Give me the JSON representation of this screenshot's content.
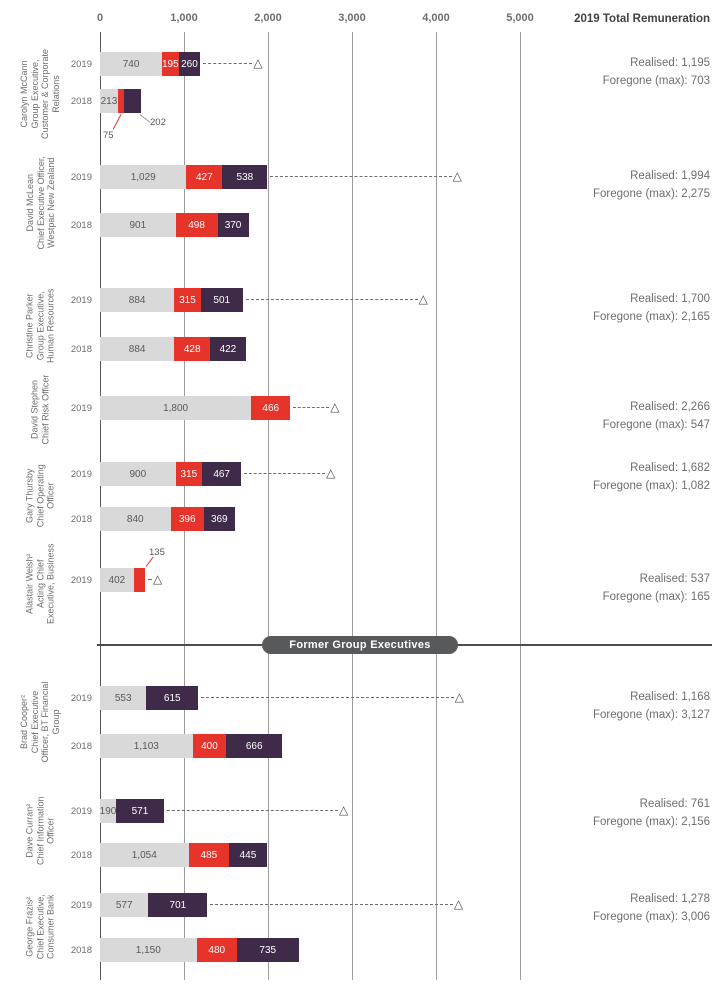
{
  "chart_data": {
    "type": "bar",
    "orientation": "horizontal",
    "x_axis": {
      "title": "2019 Total Remuneration",
      "max": 5000,
      "ticks": [
        {
          "label": "0",
          "value": 0
        },
        {
          "label": "1,000",
          "value": 1000
        },
        {
          "label": "2,000",
          "value": 2000
        },
        {
          "label": "3,000",
          "value": 3000
        },
        {
          "label": "4,000",
          "value": 4000
        },
        {
          "label": "5,000",
          "value": 5000
        }
      ]
    },
    "divider_label": "Former Group Executives",
    "series_colors": {
      "segment_gray": "#d9d9d9",
      "segment_red": "#e6342b",
      "segment_dark": "#3f2b49",
      "marker": "#4d4d4d"
    },
    "executives": [
      {
        "name": "Carolyn McCann",
        "title": "Group Executive, Customer & Corporate Relations",
        "section": "current",
        "realised_value": 1195,
        "foregone_value": 703,
        "summary": {
          "realised": "Realised: 1,195",
          "foregone": "Foregone (max): 703"
        },
        "bars": [
          {
            "year": "2019",
            "segments": [
              {
                "type": "gray",
                "value": 740,
                "label": "740"
              },
              {
                "type": "red",
                "value": 195,
                "label": "195"
              },
              {
                "type": "dark",
                "value": 260,
                "label": "260"
              }
            ]
          },
          {
            "year": "2018",
            "segments": [
              {
                "type": "gray",
                "value": 213,
                "label": "213"
              },
              {
                "type": "red",
                "value": 75,
                "label": "75",
                "label_outside": true
              },
              {
                "type": "dark",
                "value": 202,
                "label": "202",
                "label_outside": true
              }
            ]
          }
        ]
      },
      {
        "name": "David McLean",
        "title": "Chief Executive Officer, Westpac New Zealand",
        "section": "current",
        "realised_value": 1994,
        "foregone_value": 2275,
        "summary": {
          "realised": "Realised: 1,994",
          "foregone": "Foregone (max): 2,275"
        },
        "bars": [
          {
            "year": "2019",
            "segments": [
              {
                "type": "gray",
                "value": 1029,
                "label": "1,029"
              },
              {
                "type": "red",
                "value": 427,
                "label": "427"
              },
              {
                "type": "dark",
                "value": 538,
                "label": "538"
              }
            ]
          },
          {
            "year": "2018",
            "segments": [
              {
                "type": "gray",
                "value": 901,
                "label": "901"
              },
              {
                "type": "red",
                "value": 498,
                "label": "498"
              },
              {
                "type": "dark",
                "value": 370,
                "label": "370"
              }
            ]
          }
        ]
      },
      {
        "name": "Christine Parker",
        "title": "Group Executive, Human Resources",
        "section": "current",
        "realised_value": 1700,
        "foregone_value": 2165,
        "summary": {
          "realised": "Realised: 1,700",
          "foregone": "Foregone (max): 2,165"
        },
        "bars": [
          {
            "year": "2019",
            "segments": [
              {
                "type": "gray",
                "value": 884,
                "label": "884"
              },
              {
                "type": "red",
                "value": 315,
                "label": "315"
              },
              {
                "type": "dark",
                "value": 501,
                "label": "501"
              }
            ]
          },
          {
            "year": "2018",
            "segments": [
              {
                "type": "gray",
                "value": 884,
                "label": "884"
              },
              {
                "type": "red",
                "value": 428,
                "label": "428"
              },
              {
                "type": "dark",
                "value": 422,
                "label": "422"
              }
            ]
          }
        ]
      },
      {
        "name": "David Stephen",
        "title": "Chief Risk Officer",
        "section": "current",
        "realised_value": 2266,
        "foregone_value": 547,
        "summary": {
          "realised": "Realised: 2,266",
          "foregone": "Foregone (max): 547"
        },
        "bars": [
          {
            "year": "2019",
            "segments": [
              {
                "type": "gray",
                "value": 1800,
                "label": "1,800"
              },
              {
                "type": "red",
                "value": 466,
                "label": "466"
              }
            ]
          }
        ]
      },
      {
        "name": "Gary Thursby",
        "title": "Chief Operating Officer",
        "section": "current",
        "realised_value": 1682,
        "foregone_value": 1082,
        "summary": {
          "realised": "Realised: 1,682",
          "foregone": "Foregone (max): 1,082"
        },
        "bars": [
          {
            "year": "2019",
            "segments": [
              {
                "type": "gray",
                "value": 900,
                "label": "900"
              },
              {
                "type": "red",
                "value": 315,
                "label": "315"
              },
              {
                "type": "dark",
                "value": 467,
                "label": "467"
              }
            ]
          },
          {
            "year": "2018",
            "segments": [
              {
                "type": "gray",
                "value": 840,
                "label": "840"
              },
              {
                "type": "red",
                "value": 396,
                "label": "396"
              },
              {
                "type": "dark",
                "value": 369,
                "label": "369"
              }
            ]
          }
        ]
      },
      {
        "name": "Alastair Welsh²",
        "title": "Acting Chief Executive, Business",
        "section": "current",
        "realised_value": 537,
        "foregone_value": 165,
        "summary": {
          "realised": "Realised: 537",
          "foregone": "Foregone (max): 165"
        },
        "bars": [
          {
            "year": "2019",
            "segments": [
              {
                "type": "gray",
                "value": 402,
                "label": "402"
              },
              {
                "type": "red",
                "value": 135,
                "label": "135",
                "label_outside": true
              }
            ]
          }
        ]
      },
      {
        "name": "Brad Cooper²",
        "title": "Chief Executive Officer, BT Financial Group",
        "section": "former",
        "realised_value": 1168,
        "foregone_value": 3127,
        "summary": {
          "realised": "Realised: 1,168",
          "foregone": "Foregone (max): 3,127"
        },
        "bars": [
          {
            "year": "2019",
            "segments": [
              {
                "type": "gray",
                "value": 553,
                "label": "553"
              },
              {
                "type": "dark",
                "value": 615,
                "label": "615"
              }
            ]
          },
          {
            "year": "2018",
            "segments": [
              {
                "type": "gray",
                "value": 1103,
                "label": "1,103"
              },
              {
                "type": "red",
                "value": 400,
                "label": "400"
              },
              {
                "type": "dark",
                "value": 666,
                "label": "666"
              }
            ]
          }
        ]
      },
      {
        "name": "Dave Curran²",
        "title": "Chief Information Officer",
        "section": "former",
        "realised_value": 761,
        "foregone_value": 2156,
        "summary": {
          "realised": "Realised: 761",
          "foregone": "Foregone (max): 2,156"
        },
        "bars": [
          {
            "year": "2019",
            "segments": [
              {
                "type": "gray",
                "value": 190,
                "label": "190"
              },
              {
                "type": "dark",
                "value": 571,
                "label": "571"
              }
            ]
          },
          {
            "year": "2018",
            "segments": [
              {
                "type": "gray",
                "value": 1054,
                "label": "1,054"
              },
              {
                "type": "red",
                "value": 485,
                "label": "485"
              },
              {
                "type": "dark",
                "value": 445,
                "label": "445"
              }
            ]
          }
        ]
      },
      {
        "name": "George Frazis²",
        "title": "Chief Executive, Consumer Bank",
        "section": "former",
        "realised_value": 1278,
        "foregone_value": 3006,
        "summary": {
          "realised": "Realised: 1,278",
          "foregone": "Foregone (max): 3,006"
        },
        "bars": [
          {
            "year": "2019",
            "segments": [
              {
                "type": "gray",
                "value": 577,
                "label": "577"
              },
              {
                "type": "dark",
                "value": 701,
                "label": "701"
              }
            ]
          },
          {
            "year": "2018",
            "segments": [
              {
                "type": "gray",
                "value": 1150,
                "label": "1,150"
              },
              {
                "type": "red",
                "value": 480,
                "label": "480"
              },
              {
                "type": "dark",
                "value": 735,
                "label": "735"
              }
            ]
          }
        ]
      }
    ]
  }
}
